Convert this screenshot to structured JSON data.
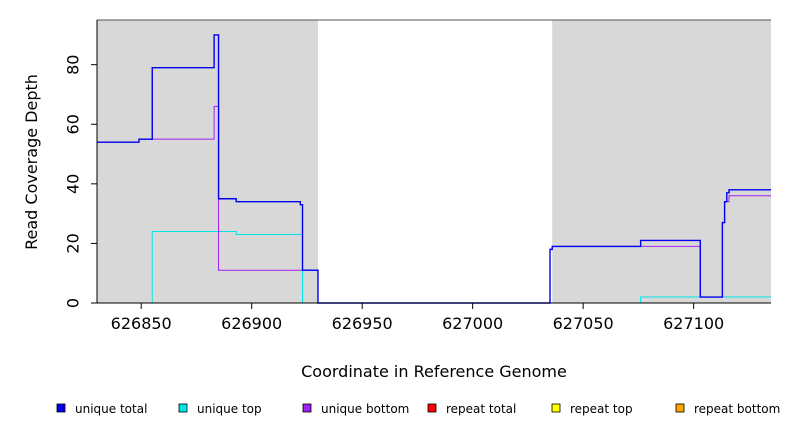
{
  "chart_data": {
    "type": "line",
    "title": "",
    "xlabel": "Coordinate in Reference Genome",
    "ylabel": "Read Coverage Depth",
    "xlim": [
      626830,
      627135
    ],
    "ylim": [
      0,
      95
    ],
    "x_ticks": [
      626850,
      626900,
      626950,
      627000,
      627050,
      627100
    ],
    "x_tick_labels": [
      "626850",
      "626900",
      "626950",
      "627000",
      "627050",
      "627100"
    ],
    "y_ticks": [
      0,
      20,
      40,
      60,
      80
    ],
    "y_tick_labels": [
      "0",
      "20",
      "40",
      "60",
      "80"
    ],
    "grid": false,
    "shaded_regions": [
      {
        "x": [
          626830,
          626930
        ],
        "color": "#d8d8d8"
      },
      {
        "x": [
          627036,
          627135
        ],
        "color": "#d8d8d8"
      }
    ],
    "legend_position": "bottom",
    "series": [
      {
        "name": "unique total",
        "color": "#0000ee",
        "step": true,
        "points": [
          [
            626830,
            54
          ],
          [
            626849,
            54
          ],
          [
            626849,
            55
          ],
          [
            626855,
            55
          ],
          [
            626855,
            79
          ],
          [
            626883,
            79
          ],
          [
            626883,
            90
          ],
          [
            626885,
            90
          ],
          [
            626885,
            35
          ],
          [
            626893,
            35
          ],
          [
            626893,
            34
          ],
          [
            626922,
            34
          ],
          [
            626922,
            33
          ],
          [
            626923,
            33
          ],
          [
            626923,
            11
          ],
          [
            626930,
            11
          ],
          [
            626930,
            0
          ],
          [
            627035,
            0
          ],
          [
            627035,
            18
          ],
          [
            627036,
            18
          ],
          [
            627036,
            19
          ],
          [
            627076,
            19
          ],
          [
            627076,
            21
          ],
          [
            627103,
            21
          ],
          [
            627103,
            2
          ],
          [
            627113,
            2
          ],
          [
            627113,
            27
          ],
          [
            627114,
            27
          ],
          [
            627114,
            34
          ],
          [
            627115,
            34
          ],
          [
            627115,
            37
          ],
          [
            627116,
            37
          ],
          [
            627116,
            38
          ],
          [
            627135,
            38
          ]
        ]
      },
      {
        "name": "unique top",
        "color": "#00e5e5",
        "step": true,
        "points": [
          [
            626830,
            0
          ],
          [
            626855,
            0
          ],
          [
            626855,
            24
          ],
          [
            626893,
            24
          ],
          [
            626893,
            23
          ],
          [
            626923,
            23
          ],
          [
            626923,
            0
          ],
          [
            627076,
            0
          ],
          [
            627076,
            2
          ],
          [
            627135,
            2
          ]
        ]
      },
      {
        "name": "unique bottom",
        "color": "#a020f0",
        "step": true,
        "points": [
          [
            626830,
            54
          ],
          [
            626849,
            54
          ],
          [
            626849,
            55
          ],
          [
            626883,
            55
          ],
          [
            626883,
            66
          ],
          [
            626885,
            66
          ],
          [
            626885,
            11
          ],
          [
            626930,
            11
          ],
          [
            626930,
            0
          ],
          [
            627035,
            0
          ],
          [
            627035,
            18
          ],
          [
            627036,
            18
          ],
          [
            627036,
            19
          ],
          [
            627103,
            19
          ],
          [
            627103,
            2
          ],
          [
            627113,
            2
          ],
          [
            627113,
            27
          ],
          [
            627114,
            27
          ],
          [
            627114,
            34
          ],
          [
            627116,
            34
          ],
          [
            627116,
            36
          ],
          [
            627135,
            36
          ]
        ]
      },
      {
        "name": "repeat total",
        "color": "#ff0000",
        "step": true,
        "points": [
          [
            626830,
            0
          ],
          [
            627135,
            0
          ]
        ]
      },
      {
        "name": "repeat top",
        "color": "#ffff00",
        "step": true,
        "points": [
          [
            626830,
            0
          ],
          [
            627135,
            0
          ]
        ]
      },
      {
        "name": "repeat bottom",
        "color": "#ffa500",
        "step": true,
        "points": [
          [
            626830,
            0
          ],
          [
            627135,
            0
          ]
        ]
      }
    ]
  }
}
